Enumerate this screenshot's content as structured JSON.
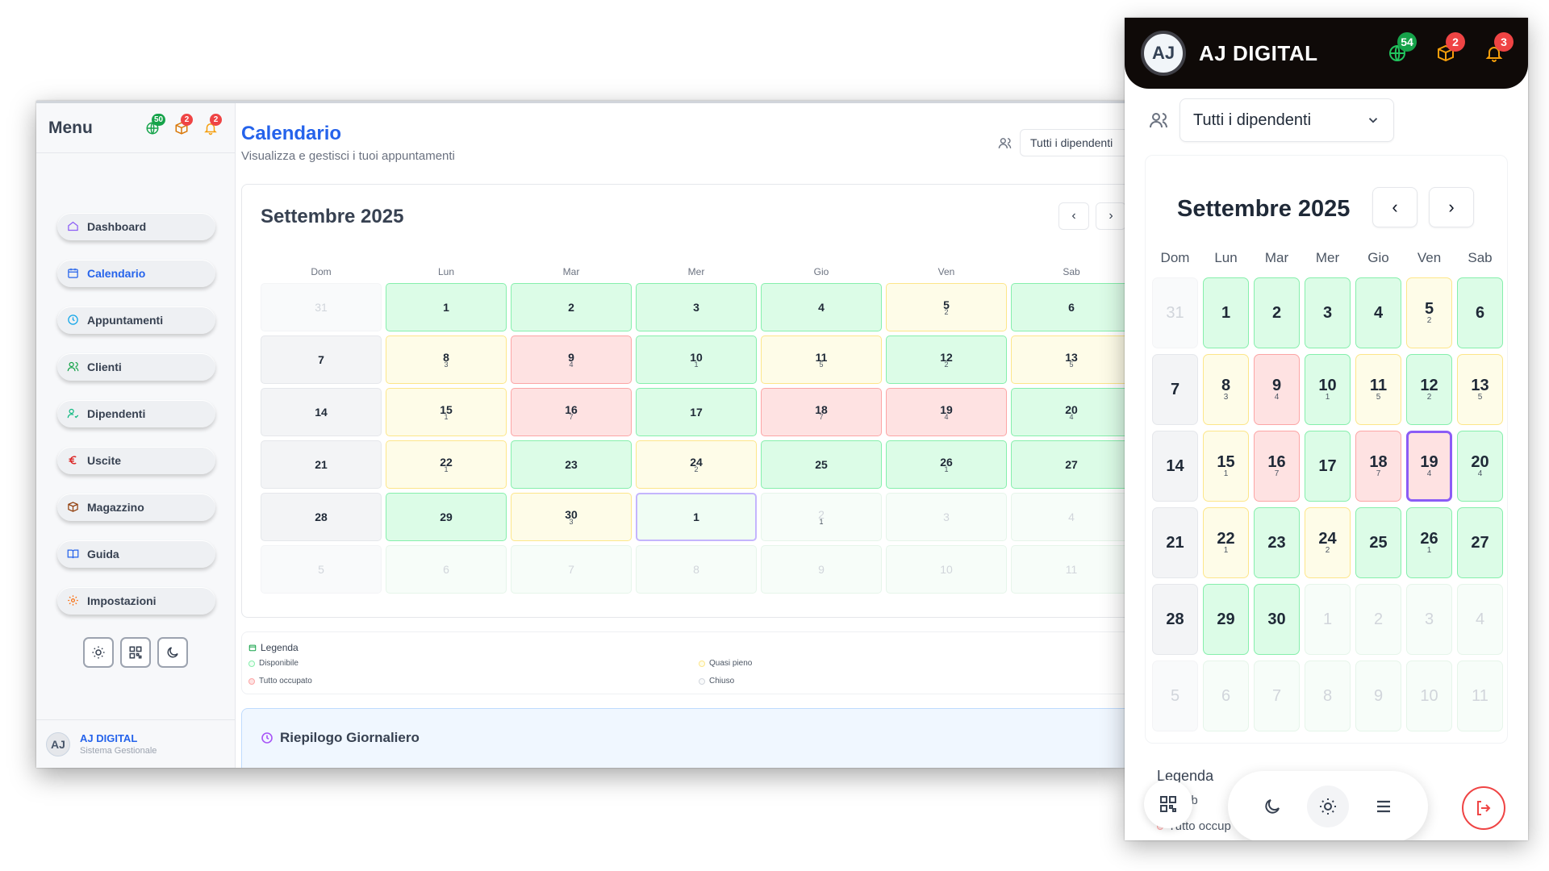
{
  "desktop": {
    "sidebar": {
      "title": "Menu",
      "badges": {
        "globe": "50",
        "box": "2",
        "bell": "2"
      },
      "items": [
        {
          "label": "Dashboard",
          "icon": "home-icon"
        },
        {
          "label": "Calendario",
          "icon": "calendar-icon",
          "active": true
        },
        {
          "label": "Appuntamenti",
          "icon": "clock-icon"
        },
        {
          "label": "Clienti",
          "icon": "users-icon"
        },
        {
          "label": "Dipendenti",
          "icon": "user-check-icon"
        },
        {
          "label": "Uscite",
          "icon": "euro-icon"
        },
        {
          "label": "Magazzino",
          "icon": "package-icon"
        },
        {
          "label": "Guida",
          "icon": "book-icon"
        },
        {
          "label": "Impostazioni",
          "icon": "settings-icon"
        }
      ],
      "footer": {
        "avatar": "AJ",
        "name": "AJ DIGITAL",
        "subtitle": "Sistema Gestionale"
      }
    },
    "header": {
      "title": "Calendario",
      "subtitle": "Visualizza e gestisci i tuoi appuntamenti",
      "employee_filter": "Tutti i dipendenti"
    },
    "calendar": {
      "month": "Settembre 2025",
      "prev": "‹",
      "next": "›",
      "weekdays": [
        "Dom",
        "Lun",
        "Mar",
        "Mer",
        "Gio",
        "Ven",
        "Sab"
      ]
    },
    "legend": {
      "title": "Legenda",
      "items": [
        "Disponibile",
        "Quasi pieno",
        "Tutto occupato",
        "Chiuso"
      ]
    },
    "summary": {
      "title": "Riepilogo Giornaliero"
    }
  },
  "mobile": {
    "brand": "AJ DIGITAL",
    "logo": "AJ",
    "badges": {
      "globe": "54",
      "box": "2",
      "bell": "3"
    },
    "employee_filter": "Tutti i dipendenti",
    "month": "Settembre 2025",
    "prev": "‹",
    "next": "›",
    "weekdays": [
      "Dom",
      "Lun",
      "Mar",
      "Mer",
      "Gio",
      "Ven",
      "Sab"
    ],
    "legend_title": "Legenda",
    "legend_partial_1": "ponib",
    "legend_partial_2": "Tutto occup"
  },
  "days_desktop": [
    {
      "n": "31",
      "s": "gray-other",
      "sub": ""
    },
    {
      "n": "1",
      "s": "green",
      "sub": ""
    },
    {
      "n": "2",
      "s": "green",
      "sub": ""
    },
    {
      "n": "3",
      "s": "green",
      "sub": ""
    },
    {
      "n": "4",
      "s": "green",
      "sub": ""
    },
    {
      "n": "5",
      "s": "yellow",
      "sub": "2"
    },
    {
      "n": "6",
      "s": "green",
      "sub": ""
    },
    {
      "n": "7",
      "s": "gray",
      "sub": ""
    },
    {
      "n": "8",
      "s": "yellow",
      "sub": "3"
    },
    {
      "n": "9",
      "s": "red",
      "sub": "4"
    },
    {
      "n": "10",
      "s": "green",
      "sub": "1"
    },
    {
      "n": "11",
      "s": "yellow",
      "sub": "5"
    },
    {
      "n": "12",
      "s": "green",
      "sub": "2"
    },
    {
      "n": "13",
      "s": "yellow",
      "sub": "5"
    },
    {
      "n": "14",
      "s": "gray",
      "sub": ""
    },
    {
      "n": "15",
      "s": "yellow",
      "sub": "1"
    },
    {
      "n": "16",
      "s": "red",
      "sub": "7"
    },
    {
      "n": "17",
      "s": "green",
      "sub": ""
    },
    {
      "n": "18",
      "s": "red",
      "sub": "7"
    },
    {
      "n": "19",
      "s": "red",
      "sub": "4"
    },
    {
      "n": "20",
      "s": "green",
      "sub": "4"
    },
    {
      "n": "21",
      "s": "gray",
      "sub": ""
    },
    {
      "n": "22",
      "s": "yellow",
      "sub": "1"
    },
    {
      "n": "23",
      "s": "green",
      "sub": ""
    },
    {
      "n": "24",
      "s": "yellow",
      "sub": "2"
    },
    {
      "n": "25",
      "s": "green",
      "sub": ""
    },
    {
      "n": "26",
      "s": "green",
      "sub": "1"
    },
    {
      "n": "27",
      "s": "green",
      "sub": ""
    },
    {
      "n": "28",
      "s": "gray",
      "sub": ""
    },
    {
      "n": "29",
      "s": "green",
      "sub": ""
    },
    {
      "n": "30",
      "s": "yellow",
      "sub": "3"
    },
    {
      "n": "1",
      "s": "today",
      "sub": ""
    },
    {
      "n": "2",
      "s": "other",
      "sub": "1"
    },
    {
      "n": "3",
      "s": "other",
      "sub": ""
    },
    {
      "n": "4",
      "s": "other",
      "sub": ""
    },
    {
      "n": "5",
      "s": "gray-other",
      "sub": ""
    },
    {
      "n": "6",
      "s": "other",
      "sub": ""
    },
    {
      "n": "7",
      "s": "other",
      "sub": ""
    },
    {
      "n": "8",
      "s": "other",
      "sub": ""
    },
    {
      "n": "9",
      "s": "other",
      "sub": ""
    },
    {
      "n": "10",
      "s": "other",
      "sub": ""
    },
    {
      "n": "11",
      "s": "other",
      "sub": ""
    }
  ],
  "days_mobile": [
    {
      "n": "31",
      "s": "gray-other",
      "sub": ""
    },
    {
      "n": "1",
      "s": "green",
      "sub": ""
    },
    {
      "n": "2",
      "s": "green",
      "sub": ""
    },
    {
      "n": "3",
      "s": "green",
      "sub": ""
    },
    {
      "n": "4",
      "s": "green",
      "sub": ""
    },
    {
      "n": "5",
      "s": "yellow",
      "sub": "2"
    },
    {
      "n": "6",
      "s": "green",
      "sub": ""
    },
    {
      "n": "7",
      "s": "gray",
      "sub": ""
    },
    {
      "n": "8",
      "s": "yellow",
      "sub": "3"
    },
    {
      "n": "9",
      "s": "red",
      "sub": "4"
    },
    {
      "n": "10",
      "s": "green",
      "sub": "1"
    },
    {
      "n": "11",
      "s": "yellow",
      "sub": "5"
    },
    {
      "n": "12",
      "s": "green",
      "sub": "2"
    },
    {
      "n": "13",
      "s": "yellow",
      "sub": "5"
    },
    {
      "n": "14",
      "s": "gray",
      "sub": ""
    },
    {
      "n": "15",
      "s": "yellow",
      "sub": "1"
    },
    {
      "n": "16",
      "s": "red",
      "sub": "7"
    },
    {
      "n": "17",
      "s": "green",
      "sub": ""
    },
    {
      "n": "18",
      "s": "red",
      "sub": "7"
    },
    {
      "n": "19",
      "s": "today2",
      "sub": "4"
    },
    {
      "n": "20",
      "s": "green",
      "sub": "4"
    },
    {
      "n": "21",
      "s": "gray",
      "sub": ""
    },
    {
      "n": "22",
      "s": "yellow",
      "sub": "1"
    },
    {
      "n": "23",
      "s": "green",
      "sub": ""
    },
    {
      "n": "24",
      "s": "yellow",
      "sub": "2"
    },
    {
      "n": "25",
      "s": "green",
      "sub": ""
    },
    {
      "n": "26",
      "s": "green",
      "sub": "1"
    },
    {
      "n": "27",
      "s": "green",
      "sub": ""
    },
    {
      "n": "28",
      "s": "gray",
      "sub": ""
    },
    {
      "n": "29",
      "s": "green",
      "sub": ""
    },
    {
      "n": "30",
      "s": "green",
      "sub": ""
    },
    {
      "n": "1",
      "s": "other",
      "sub": ""
    },
    {
      "n": "2",
      "s": "other",
      "sub": ""
    },
    {
      "n": "3",
      "s": "other",
      "sub": ""
    },
    {
      "n": "4",
      "s": "other",
      "sub": ""
    },
    {
      "n": "5",
      "s": "gray-other",
      "sub": ""
    },
    {
      "n": "6",
      "s": "other",
      "sub": ""
    },
    {
      "n": "7",
      "s": "other",
      "sub": ""
    },
    {
      "n": "8",
      "s": "other",
      "sub": ""
    },
    {
      "n": "9",
      "s": "other",
      "sub": ""
    },
    {
      "n": "10",
      "s": "other",
      "sub": ""
    },
    {
      "n": "11",
      "s": "other",
      "sub": ""
    }
  ],
  "colors": {
    "accent": "#2563eb",
    "available": "#dcfce7",
    "almost_full": "#fefce8",
    "full": "#fee2e2",
    "closed": "#f3f4f6",
    "header_dark": "#0f0a08"
  }
}
